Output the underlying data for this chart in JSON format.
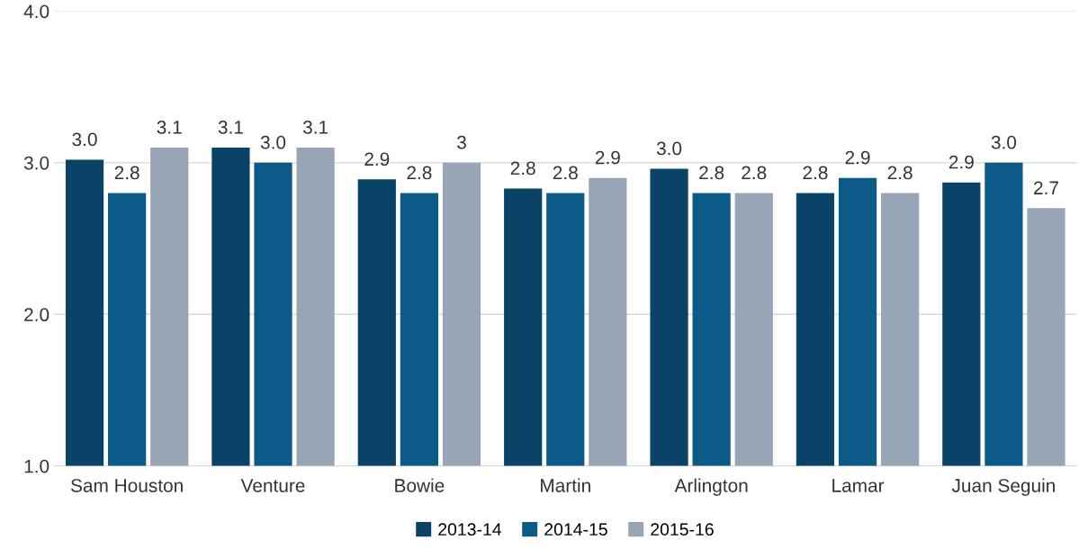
{
  "chart_data": {
    "type": "bar",
    "categories": [
      "Sam Houston",
      "Venture",
      "Bowie",
      "Martin",
      "Arlington",
      "Lamar",
      "Juan Seguin"
    ],
    "series": [
      {
        "name": "2013-14",
        "color": "#0a4368",
        "values": [
          3.02,
          3.1,
          2.89,
          2.83,
          2.96,
          2.8,
          2.87
        ],
        "value_labels": [
          "3.0",
          "3.1",
          "2.9",
          "2.8",
          "3.0",
          "2.8",
          "2.9"
        ]
      },
      {
        "name": "2014-15",
        "color": "#0b5a87",
        "values": [
          2.8,
          3.0,
          2.8,
          2.8,
          2.8,
          2.9,
          3.0
        ],
        "value_labels": [
          "2.8",
          "3.0",
          "2.8",
          "2.8",
          "2.8",
          "2.9",
          "3.0"
        ]
      },
      {
        "name": "2015-16",
        "color": "#97a5b6",
        "values": [
          3.1,
          3.1,
          3.0,
          2.9,
          2.8,
          2.8,
          2.7
        ],
        "value_labels": [
          "3.1",
          "3.1",
          "3",
          "2.9",
          "2.8",
          "2.8",
          "2.7"
        ]
      }
    ],
    "ylim": [
      1.0,
      4.0
    ],
    "yticks": [
      {
        "value": 1.0,
        "label": "1.0"
      },
      {
        "value": 2.0,
        "label": "2.0"
      },
      {
        "value": 3.0,
        "label": "3.0"
      },
      {
        "value": 4.0,
        "label": "4.0"
      }
    ],
    "grid": "y",
    "legend": "bottom"
  }
}
